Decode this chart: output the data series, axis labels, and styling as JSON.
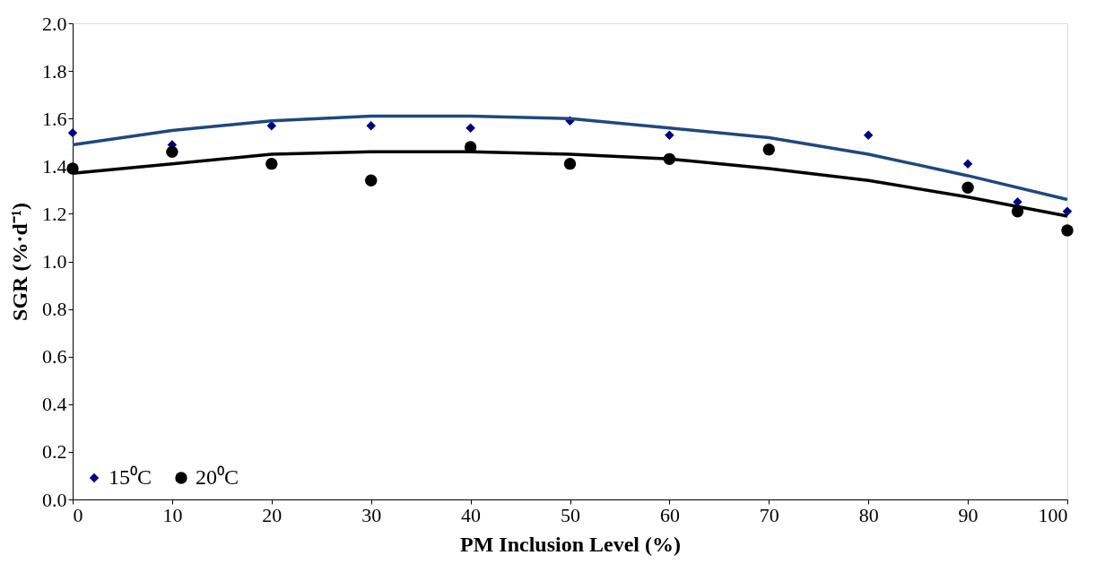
{
  "chart_data": {
    "type": "scatter",
    "xlabel": "PM Inclusion Level (%)",
    "ylabel": "SGR (%·d⁻¹)",
    "xlim": [
      0,
      100
    ],
    "ylim": [
      0,
      2
    ],
    "xticks": [
      0,
      10,
      20,
      30,
      40,
      50,
      60,
      70,
      80,
      90,
      100
    ],
    "yticks": [
      {
        "value": 0,
        "label": "0.0"
      },
      {
        "value": 0.2,
        "label": "0.2"
      },
      {
        "value": 0.4,
        "label": "0.4"
      },
      {
        "value": 0.6,
        "label": "0.6"
      },
      {
        "value": 0.8,
        "label": "0.8"
      },
      {
        "value": 1,
        "label": "1.0"
      },
      {
        "value": 1.2,
        "label": "1.2"
      },
      {
        "value": 1.4,
        "label": "1.4"
      },
      {
        "value": 1.6,
        "label": "1.6"
      },
      {
        "value": 1.8,
        "label": "1.8"
      },
      {
        "value": 2,
        "label": "2.0"
      }
    ],
    "grid": false,
    "legend": "bottom left",
    "series": [
      {
        "name": "15⁰C",
        "marker": "diamond",
        "color": "#000080",
        "x": [
          0,
          10,
          20,
          30,
          40,
          50,
          60,
          70,
          80,
          90,
          95,
          100
        ],
        "values": [
          1.54,
          1.49,
          1.57,
          1.57,
          1.56,
          1.59,
          1.53,
          null,
          1.53,
          1.41,
          1.25,
          1.21
        ]
      },
      {
        "name": "20⁰C",
        "marker": "circle",
        "color": "#000000",
        "x": [
          0,
          10,
          20,
          30,
          40,
          50,
          60,
          70,
          90,
          95,
          100
        ],
        "values": [
          1.39,
          1.46,
          1.41,
          1.34,
          1.48,
          1.41,
          1.43,
          1.47,
          1.31,
          1.21,
          1.13
        ]
      },
      {
        "type": "line",
        "color": "#1f497d",
        "x": [
          0,
          10,
          20,
          30,
          40,
          50,
          60,
          70,
          80,
          90,
          100
        ],
        "values": [
          1.49,
          1.55,
          1.59,
          1.61,
          1.61,
          1.6,
          1.56,
          1.52,
          1.45,
          1.36,
          1.26
        ]
      },
      {
        "type": "line",
        "color": "#000000",
        "x": [
          0,
          10,
          20,
          30,
          40,
          50,
          60,
          70,
          80,
          90,
          100
        ],
        "values": [
          1.37,
          1.41,
          1.45,
          1.46,
          1.46,
          1.45,
          1.43,
          1.39,
          1.34,
          1.27,
          1.19
        ]
      }
    ]
  }
}
